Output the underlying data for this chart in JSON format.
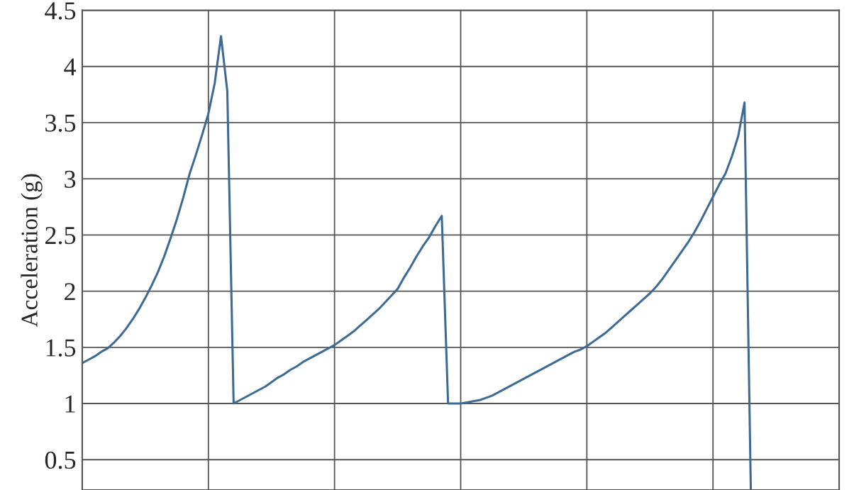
{
  "chart_data": {
    "type": "line",
    "ylabel": "Acceleration (g)",
    "categories": [
      null,
      null,
      null,
      null,
      null,
      null,
      null,
      null,
      null,
      null,
      null,
      null,
      null,
      null,
      null,
      null,
      null,
      null,
      null,
      null,
      null,
      null,
      null,
      null,
      null,
      null,
      null,
      null,
      null,
      null,
      null,
      null,
      null,
      null,
      null,
      null,
      null,
      null,
      null,
      null,
      null,
      null,
      null,
      null,
      null,
      null,
      null,
      null,
      null,
      null,
      null,
      null,
      null,
      null,
      null,
      null,
      null,
      null,
      null,
      null,
      null,
      null,
      null,
      null,
      null,
      null,
      null,
      null,
      null,
      null,
      null,
      null,
      null,
      null,
      null,
      null,
      null,
      null,
      null,
      null,
      null,
      null,
      null,
      null,
      null,
      null,
      null,
      null,
      null,
      null,
      null,
      null,
      null,
      null,
      null,
      null,
      null,
      null,
      null,
      null,
      null,
      null,
      null,
      null,
      null,
      null,
      null,
      null,
      null,
      null,
      null,
      null,
      null,
      null,
      null,
      null,
      null,
      null,
      null,
      null,
      null
    ],
    "ylim": [
      0.23,
      4.5
    ],
    "yticks": [
      0.5,
      1,
      1.5,
      2,
      2.5,
      3,
      3.5,
      4,
      4.5
    ],
    "tick_labels": "y",
    "grid": true,
    "marker": "none",
    "line_style": "solid",
    "series": [
      {
        "color": "#3d6b93",
        "values": [
          1.36,
          1.39,
          1.42,
          1.46,
          1.49,
          1.54,
          1.6,
          1.67,
          1.75,
          1.84,
          1.94,
          2.05,
          2.17,
          2.31,
          2.47,
          2.64,
          2.83,
          3.04,
          3.21,
          3.39,
          3.58,
          3.85,
          4.27,
          3.78,
          1.0,
          1.03,
          1.06,
          1.09,
          1.12,
          1.15,
          1.19,
          1.23,
          1.26,
          1.3,
          1.33,
          1.37,
          1.4,
          1.43,
          1.46,
          1.49,
          1.52,
          1.56,
          1.6,
          1.64,
          1.69,
          1.74,
          1.79,
          1.84,
          1.9,
          1.96,
          2.02,
          2.12,
          2.21,
          2.31,
          2.4,
          2.48,
          2.58,
          2.67,
          1.0,
          1.0,
          1.0,
          1.01,
          1.02,
          1.03,
          1.05,
          1.07,
          1.1,
          1.13,
          1.16,
          1.19,
          1.22,
          1.25,
          1.28,
          1.31,
          1.34,
          1.37,
          1.4,
          1.43,
          1.46,
          1.48,
          1.51,
          1.55,
          1.59,
          1.63,
          1.68,
          1.73,
          1.78,
          1.83,
          1.88,
          1.93,
          1.98,
          2.04,
          2.11,
          2.19,
          2.27,
          2.35,
          2.43,
          2.52,
          2.62,
          2.73,
          2.84,
          2.95,
          3.05,
          3.2,
          3.38,
          3.68,
          0.23,
          null,
          null,
          null,
          null,
          null,
          null,
          null,
          null,
          null,
          null,
          null,
          null,
          null,
          null
        ]
      }
    ]
  }
}
